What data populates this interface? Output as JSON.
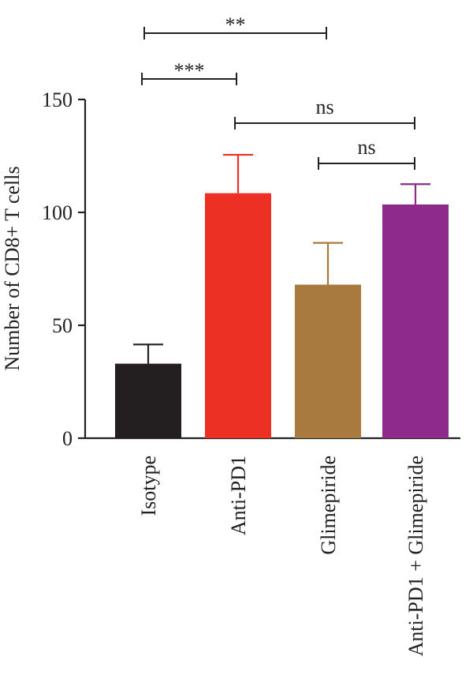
{
  "chart_data": {
    "type": "bar",
    "ylabel": "Number of CD8+ T cells",
    "xlabel": "",
    "ylim": [
      0,
      150
    ],
    "yticks": [
      0,
      50,
      100,
      150
    ],
    "categories": [
      "Isotype",
      "Anti-PD1",
      "Glimepiride",
      "Anti-PD1 + Glimepiride"
    ],
    "values": [
      33,
      108.5,
      68,
      103.5
    ],
    "errors": [
      8.5,
      17,
      18.5,
      9
    ],
    "colors": [
      "#231f20",
      "#ed3024",
      "#a97a3f",
      "#8e2a8c"
    ],
    "error_colors": [
      "#231f20",
      "#ed3024",
      "#a97a3f",
      "#8e2a8c"
    ],
    "significance": [
      {
        "from": "Isotype",
        "to": "Glimepiride",
        "label": "**"
      },
      {
        "from": "Isotype",
        "to": "Anti-PD1",
        "label": "***"
      },
      {
        "from": "Anti-PD1",
        "to": "Anti-PD1 + Glimepiride",
        "label": "ns"
      },
      {
        "from": "Glimepiride",
        "to": "Anti-PD1 + Glimepiride",
        "label": "ns"
      }
    ]
  }
}
